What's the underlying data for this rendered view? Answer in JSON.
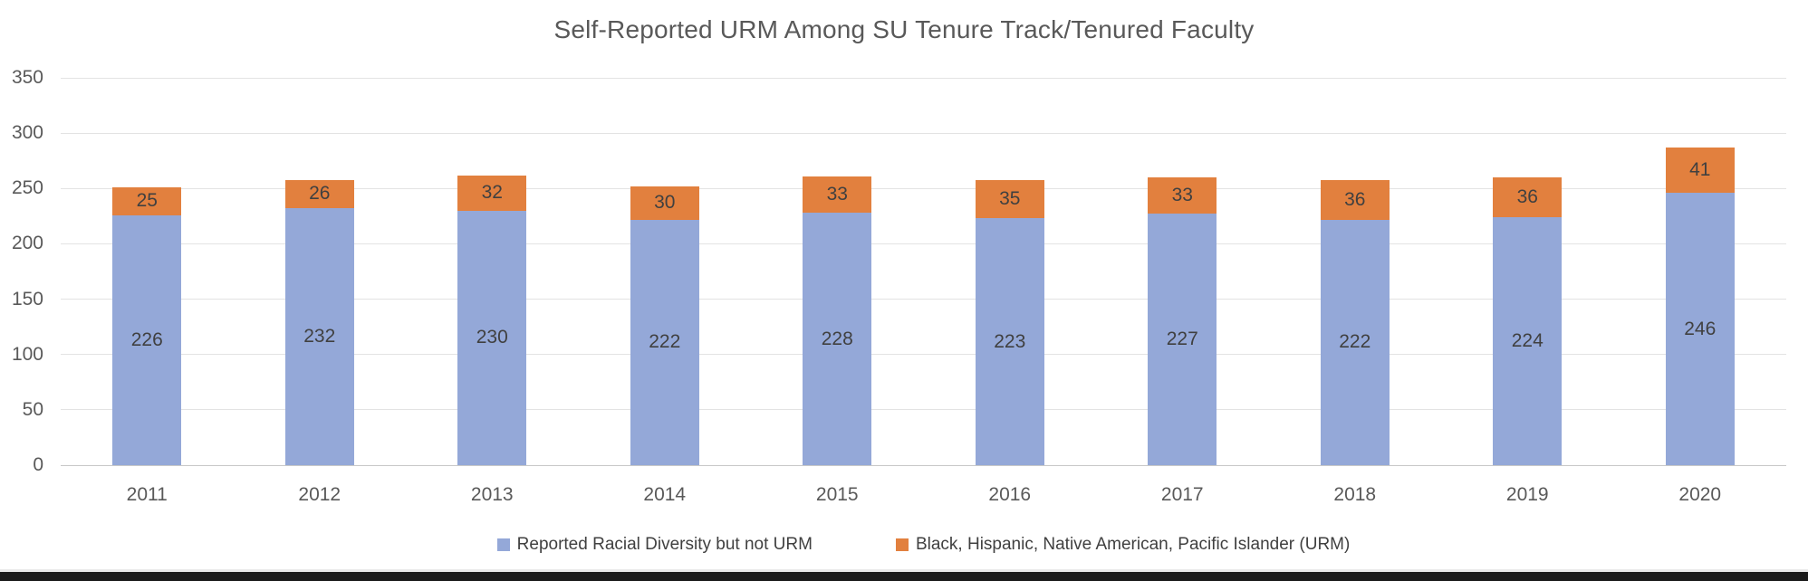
{
  "chart_data": {
    "type": "bar",
    "stacked": true,
    "title": "Self-Reported URM Among SU Tenure Track/Tenured Faculty",
    "categories": [
      "2011",
      "2012",
      "2013",
      "2014",
      "2015",
      "2016",
      "2017",
      "2018",
      "2019",
      "2020"
    ],
    "series": [
      {
        "name": "Reported Racial Diversity but not URM",
        "color": "#94a8d8",
        "values": [
          226,
          232,
          230,
          222,
          228,
          223,
          227,
          222,
          224,
          246
        ]
      },
      {
        "name": "Black, Hispanic, Native American, Pacific Islander (URM)",
        "color": "#e2803e",
        "values": [
          25,
          26,
          32,
          30,
          33,
          35,
          33,
          36,
          36,
          41
        ]
      }
    ],
    "ylim": [
      0,
      350
    ],
    "yticks": [
      0,
      50,
      100,
      150,
      200,
      250,
      300,
      350
    ],
    "xlabel": "",
    "ylabel": "",
    "grid": true,
    "legend_position": "bottom",
    "data_labels": true
  },
  "colors": {
    "non_urm_blue": "#94a8d8",
    "urm_orange": "#e2803e",
    "title_text": "#595959",
    "axis_text": "#595959",
    "data_label_text": "#404040",
    "gridline": "#e3e3e3",
    "bottom_strip": "#1b1b1b"
  }
}
